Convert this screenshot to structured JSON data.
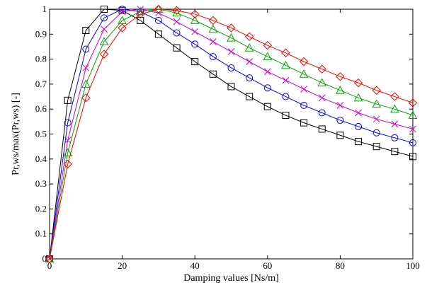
{
  "chart_data": {
    "type": "line",
    "title": "",
    "xlabel": "Damping values [Ns/m]",
    "ylabel": "Pr,ws/max(Pr,ws) [-]",
    "xlim": [
      0,
      100
    ],
    "ylim": [
      0,
      1
    ],
    "xticks": [
      0,
      20,
      40,
      60,
      80,
      100
    ],
    "yticks": [
      0,
      0.1,
      0.2,
      0.3,
      0.4,
      0.5,
      0.6,
      0.7,
      0.8,
      0.9,
      1
    ],
    "ytick_labels": [
      "0",
      "0.1",
      "0.2",
      "0.3",
      "0.4",
      "0.5",
      "0.6",
      "0.7",
      "0.8",
      "0.9",
      "1"
    ],
    "grid": false,
    "legend": "none",
    "x": [
      0,
      5,
      10,
      15,
      20,
      25,
      30,
      35,
      40,
      45,
      50,
      55,
      60,
      65,
      70,
      75,
      80,
      85,
      90,
      95,
      100
    ],
    "series": [
      {
        "color": "#000000",
        "marker": "square",
        "values": [
          0,
          0.635,
          0.915,
          1.0,
          0.995,
          0.955,
          0.9,
          0.845,
          0.79,
          0.74,
          0.69,
          0.65,
          0.61,
          0.575,
          0.545,
          0.52,
          0.495,
          0.47,
          0.45,
          0.43,
          0.41
        ]
      },
      {
        "color": "#0000ff",
        "marker": "circle",
        "values": [
          0,
          0.545,
          0.84,
          0.965,
          1.0,
          0.99,
          0.955,
          0.905,
          0.86,
          0.81,
          0.765,
          0.725,
          0.685,
          0.65,
          0.615,
          0.585,
          0.555,
          0.53,
          0.505,
          0.485,
          0.465
        ]
      },
      {
        "color": "#cc00cc",
        "marker": "x",
        "values": [
          0,
          0.475,
          0.765,
          0.92,
          0.99,
          1.0,
          0.985,
          0.95,
          0.91,
          0.87,
          0.83,
          0.79,
          0.75,
          0.715,
          0.68,
          0.645,
          0.615,
          0.585,
          0.56,
          0.54,
          0.52
        ]
      },
      {
        "color": "#00aa00",
        "marker": "triangle",
        "values": [
          0,
          0.425,
          0.7,
          0.87,
          0.955,
          0.99,
          1.0,
          0.985,
          0.955,
          0.92,
          0.885,
          0.845,
          0.81,
          0.775,
          0.74,
          0.705,
          0.675,
          0.645,
          0.62,
          0.6,
          0.575
        ]
      },
      {
        "color": "#ff0000",
        "marker": "diamond",
        "values": [
          0,
          0.38,
          0.645,
          0.82,
          0.925,
          0.98,
          1.0,
          0.995,
          0.98,
          0.955,
          0.925,
          0.89,
          0.855,
          0.825,
          0.79,
          0.76,
          0.73,
          0.705,
          0.675,
          0.65,
          0.625
        ]
      }
    ]
  }
}
